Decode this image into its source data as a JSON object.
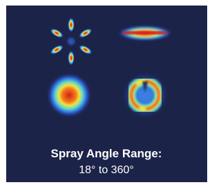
{
  "label": {
    "title": "Spray Angle Range:",
    "range": "18° to 360°"
  }
}
